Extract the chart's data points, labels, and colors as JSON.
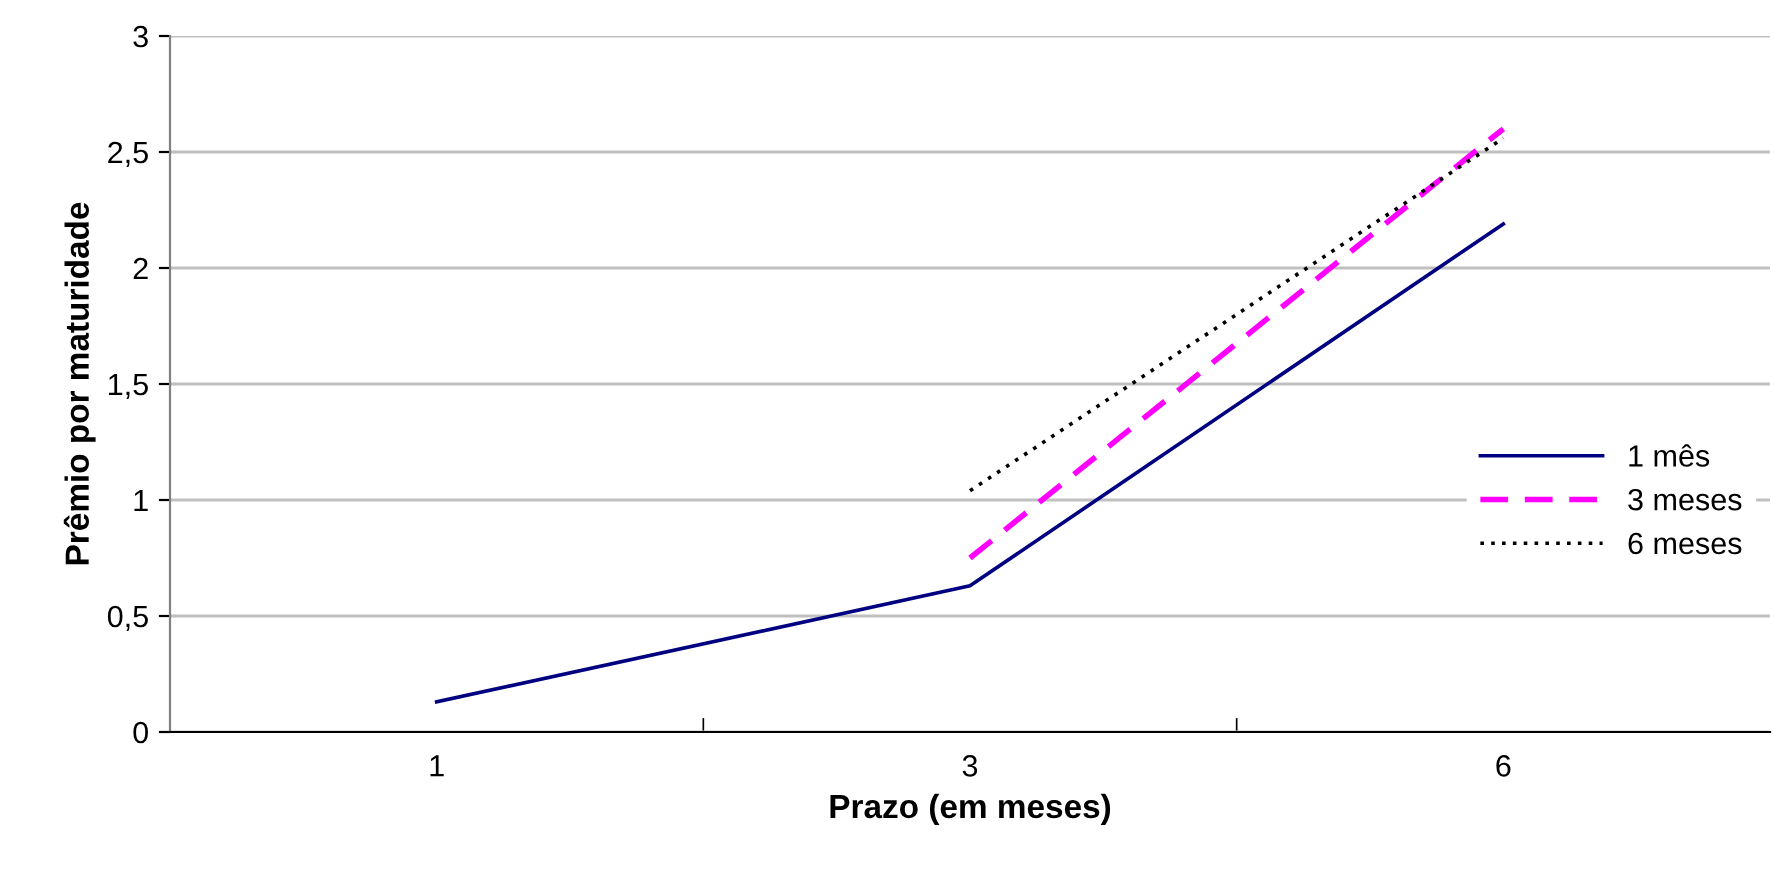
{
  "chart_data": {
    "type": "line",
    "xlabel": "Prazo (em meses)",
    "ylabel": "Prêmio por maturidade",
    "categories": [
      "1",
      "3",
      "6"
    ],
    "series": [
      {
        "name": "1 mês",
        "color": "#000080",
        "values": [
          0.13,
          0.63,
          2.19
        ],
        "line_style": "solid"
      },
      {
        "name": "3 meses",
        "color": "#ff00ff",
        "values": [
          null,
          0.75,
          2.6
        ],
        "line_style": "dashed"
      },
      {
        "name": "6 meses",
        "color": "#000000",
        "values": [
          null,
          1.04,
          2.56
        ],
        "line_style": "dotted"
      }
    ],
    "ylim": [
      0,
      3
    ],
    "yticks": [
      0,
      {
        "value": 0.5,
        "label": "0,5"
      },
      1,
      {
        "value": 1.5,
        "label": "1,5"
      },
      2,
      {
        "value": 2.5,
        "label": "2,5"
      },
      3
    ],
    "grid": "y",
    "legend": "right"
  }
}
